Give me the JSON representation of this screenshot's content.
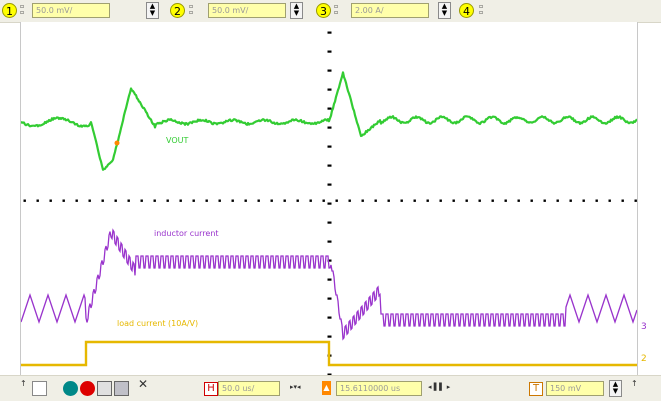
{
  "channels": [
    {
      "num": "1",
      "scale": "50.0 mV/"
    },
    {
      "num": "2",
      "scale": "50.0 mV/"
    },
    {
      "num": "3",
      "scale": "2.00 A/"
    },
    {
      "num": "4",
      "scale": ""
    }
  ],
  "traces": {
    "vout": {
      "label": "VOUT",
      "color": "#33cc33"
    },
    "inductor": {
      "label": "inductor current",
      "color": "#9933cc"
    },
    "load": {
      "label": "load current (10A/V)",
      "color": "#e6b800"
    }
  },
  "right_markers": {
    "ch3": "3",
    "ch2": "2"
  },
  "bottom": {
    "time_label": "H",
    "timebase": "50.0 us/",
    "trigger_label": "T",
    "position": "15.6110000 us",
    "trigger_level": "150 mV"
  },
  "colors": {
    "screen_bg": "#ffffff",
    "toolbar_bg": "#f0efe6",
    "field_bg": "#ffffaa"
  }
}
